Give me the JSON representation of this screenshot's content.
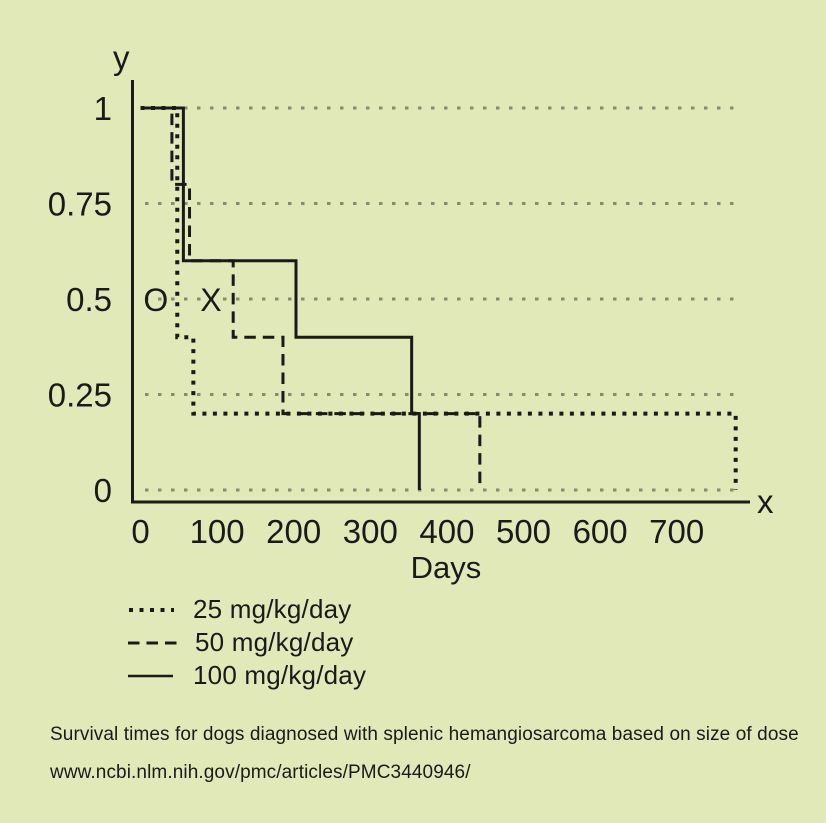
{
  "colors": {
    "background": "#e2e9b8",
    "ink": "#1a1a1a",
    "gridline": "#6f7460"
  },
  "chart_data": {
    "type": "line",
    "subtype": "kaplan-meier-step",
    "title": "",
    "xlabel": "Days",
    "ylabel": "",
    "x_axis_letter": "x",
    "y_axis_letter": "y",
    "xlim": [
      0,
      800
    ],
    "ylim": [
      0,
      1
    ],
    "grid": "horizontal-dotted",
    "x_ticks": [
      0,
      100,
      200,
      300,
      400,
      500,
      600,
      700
    ],
    "y_ticks": [
      {
        "value": 1,
        "label": "1"
      },
      {
        "value": 0.75,
        "label": "0.75"
      },
      {
        "value": 0.5,
        "label": "0.5"
      },
      {
        "value": 0.25,
        "label": "0.25"
      },
      {
        "value": 0,
        "label": "0"
      }
    ],
    "series": [
      {
        "name": "25 mg/kg/day",
        "style": "dotted",
        "steps": [
          [
            0,
            1
          ],
          [
            48,
            0.4
          ],
          [
            69,
            0.2
          ],
          [
            777,
            0
          ]
        ]
      },
      {
        "name": "50 mg/kg/day",
        "style": "dashed",
        "steps": [
          [
            0,
            1
          ],
          [
            41,
            0.8
          ],
          [
            64,
            0.6
          ],
          [
            121,
            0.4
          ],
          [
            186,
            0.2
          ],
          [
            443,
            0
          ]
        ]
      },
      {
        "name": "100 mg/kg/day",
        "style": "solid",
        "steps": [
          [
            0,
            1
          ],
          [
            56,
            0.6
          ],
          [
            203,
            0.4
          ],
          [
            354,
            0.2
          ],
          [
            364,
            0
          ]
        ]
      }
    ],
    "annotations": [
      {
        "label": "O",
        "day": 20,
        "value": 0.5
      },
      {
        "label": "X",
        "day": 92,
        "value": 0.5
      }
    ],
    "legend_position": "below-left"
  },
  "legend": {
    "items": [
      {
        "label": "25 mg/kg/day",
        "style": "dotted"
      },
      {
        "label": "50 mg/kg/day",
        "style": "dashed"
      },
      {
        "label": "100 mg/kg/day",
        "style": "solid"
      }
    ]
  },
  "caption": {
    "line1": "Survival times for dogs diagnosed with splenic hemangiosarcoma based on size of dose",
    "line2": "www.ncbi.nlm.nih.gov/pmc/articles/PMC3440946/"
  }
}
